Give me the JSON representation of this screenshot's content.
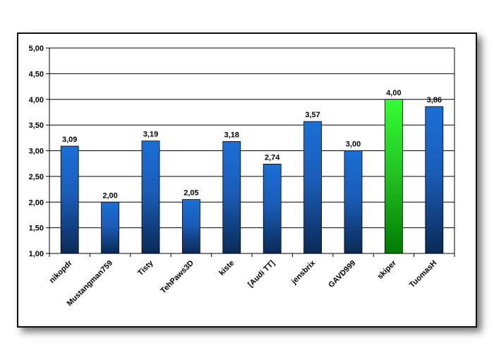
{
  "chart_data": {
    "type": "bar",
    "categories": [
      "nikopdr",
      "Mustangman759",
      "Tisty",
      "TehPaws3D",
      "kiste",
      "[Audi TT]",
      "jensbrix",
      "GAVD999",
      "skiper",
      "TuomasH"
    ],
    "values": [
      3.09,
      2.0,
      3.19,
      2.05,
      3.18,
      2.74,
      3.57,
      3.0,
      4.0,
      3.86
    ],
    "value_labels": [
      "3,09",
      "2,00",
      "3,19",
      "2,05",
      "3,18",
      "2,74",
      "3,57",
      "3,00",
      "4,00",
      "3,86"
    ],
    "yticks": [
      "1,00",
      "1,50",
      "2,00",
      "2,50",
      "3,00",
      "3,50",
      "4,00",
      "4,50",
      "5,00"
    ],
    "ylim": [
      1,
      5
    ],
    "grid": true,
    "title": "",
    "xlabel": "",
    "ylabel": "",
    "highlight_index": 8,
    "colors": {
      "bar_top": "#1a6fd6",
      "bar_bottom": "#0a2a55",
      "highlight_top": "#33ff33",
      "highlight_bottom": "#007a00",
      "grid": "#000000"
    }
  }
}
